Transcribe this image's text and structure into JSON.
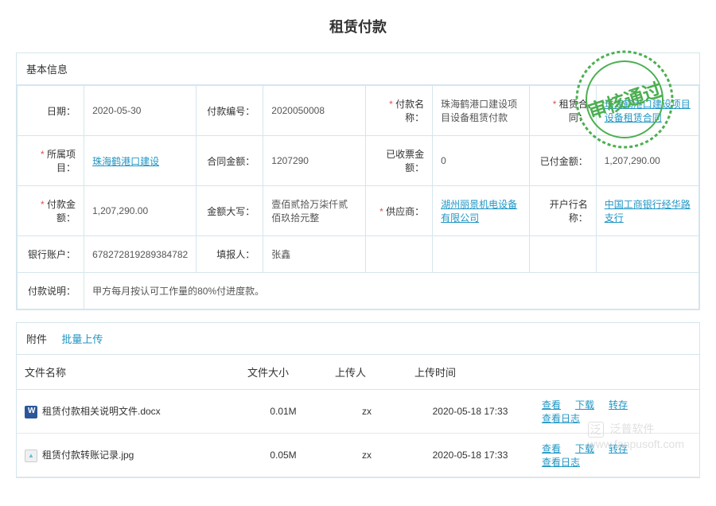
{
  "title": "租赁付款",
  "stamp_text": "审核通过",
  "stamp_color": "#4caf50",
  "basic_info": {
    "header": "基本信息",
    "rows": [
      [
        {
          "label": "日期：",
          "required": false,
          "value": "2020-05-30"
        },
        {
          "label": "付款编号：",
          "required": false,
          "value": "2020050008"
        },
        {
          "label": "付款名称：",
          "required": true,
          "value": "珠海鹤港口建设项目设备租赁付款"
        },
        {
          "label": "租赁合同：",
          "required": true,
          "value": "珠海鹤港口建设项目设备租赁合同",
          "is_link": true
        }
      ],
      [
        {
          "label": "所属项目：",
          "required": true,
          "value": "珠海鹤港口建设",
          "is_link": true
        },
        {
          "label": "合同金额：",
          "required": false,
          "value": "1207290"
        },
        {
          "label": "已收票金额：",
          "required": false,
          "value": "0"
        },
        {
          "label": "已付金额：",
          "required": false,
          "value": "1,207,290.00"
        }
      ],
      [
        {
          "label": "付款金额：",
          "required": true,
          "value": "1,207,290.00"
        },
        {
          "label": "金额大写：",
          "required": false,
          "value": "壹佰贰拾万柒仟贰佰玖拾元整"
        },
        {
          "label": "供应商：",
          "required": true,
          "value": "湖州丽景机电设备有限公司",
          "is_link": true
        },
        {
          "label": "开户行名称：",
          "required": false,
          "value": "中国工商银行经华路支行",
          "is_link": true
        }
      ],
      [
        {
          "label": "银行账户：",
          "required": false,
          "value": "678272819289384782"
        },
        {
          "label": "填报人：",
          "required": false,
          "value": "张鑫"
        },
        null,
        null
      ]
    ],
    "description": {
      "label": "付款说明：",
      "value": "甲方每月按认可工作量的80%付进度款。"
    }
  },
  "attachments": {
    "header": "附件",
    "batch_upload": "批量上传",
    "columns": {
      "filename": "文件名称",
      "size": "文件大小",
      "uploader": "上传人",
      "time": "上传时间"
    },
    "actions": {
      "view": "查看",
      "download": "下载",
      "transfer": "转存",
      "log": "查看日志"
    },
    "files": [
      {
        "icon": "docx",
        "name": "租赁付款相关说明文件.docx",
        "size": "0.01M",
        "uploader": "zx",
        "time": "2020-05-18 17:33"
      },
      {
        "icon": "jpg",
        "name": "租赁付款转账记录.jpg",
        "size": "0.05M",
        "uploader": "zx",
        "time": "2020-05-18 17:33"
      }
    ]
  },
  "watermark": {
    "text": "泛普软件",
    "url": "www.fanpusoft.com"
  }
}
